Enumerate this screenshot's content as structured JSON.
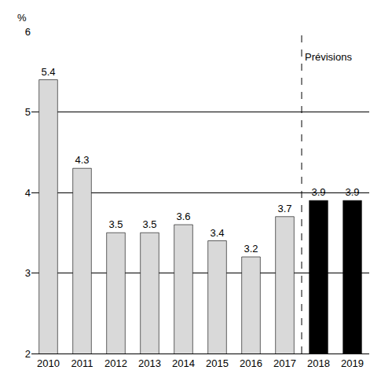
{
  "chart_data": {
    "type": "bar",
    "categories": [
      "2010",
      "2011",
      "2012",
      "2013",
      "2014",
      "2015",
      "2016",
      "2017",
      "2018",
      "2019"
    ],
    "values": [
      5.4,
      4.3,
      3.5,
      3.5,
      3.6,
      3.4,
      3.2,
      3.7,
      3.9,
      3.9
    ],
    "colors": [
      "#d9d9d9",
      "#d9d9d9",
      "#d9d9d9",
      "#d9d9d9",
      "#d9d9d9",
      "#d9d9d9",
      "#d9d9d9",
      "#d9d9d9",
      "#000000",
      "#000000"
    ],
    "ylim": [
      2,
      6
    ],
    "yticks": [
      2,
      3,
      4,
      5,
      6
    ],
    "grid": true,
    "data_labels": true,
    "y_label": "%",
    "annotations": [
      {
        "text": "Prévisions",
        "x": "2018"
      }
    ]
  }
}
